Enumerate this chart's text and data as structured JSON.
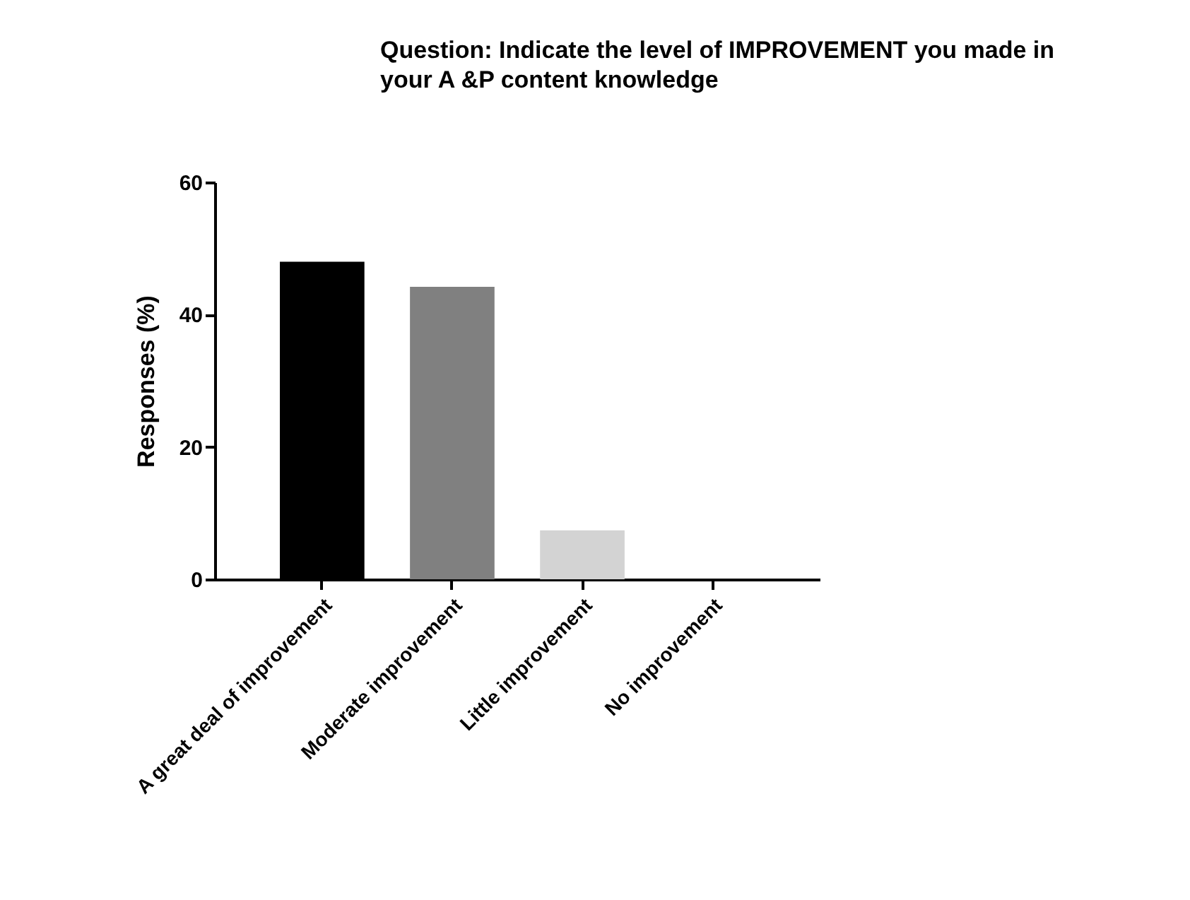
{
  "chart_data": {
    "type": "bar",
    "title": "Question: Indicate the level of IMPROVEMENT you made in your A &P content knowledge",
    "ylabel": "Responses (%)",
    "categories": [
      "A great deal of improvement",
      "Moderate improvement",
      "Little improvement",
      "No improvement"
    ],
    "values": [
      48.0,
      44.2,
      7.4,
      0
    ],
    "colors": [
      "#000000",
      "#808080",
      "#d3d3d3",
      "#f0f0f0"
    ],
    "ylim": [
      0,
      60
    ],
    "yticks": [
      0,
      20,
      40,
      60
    ]
  }
}
